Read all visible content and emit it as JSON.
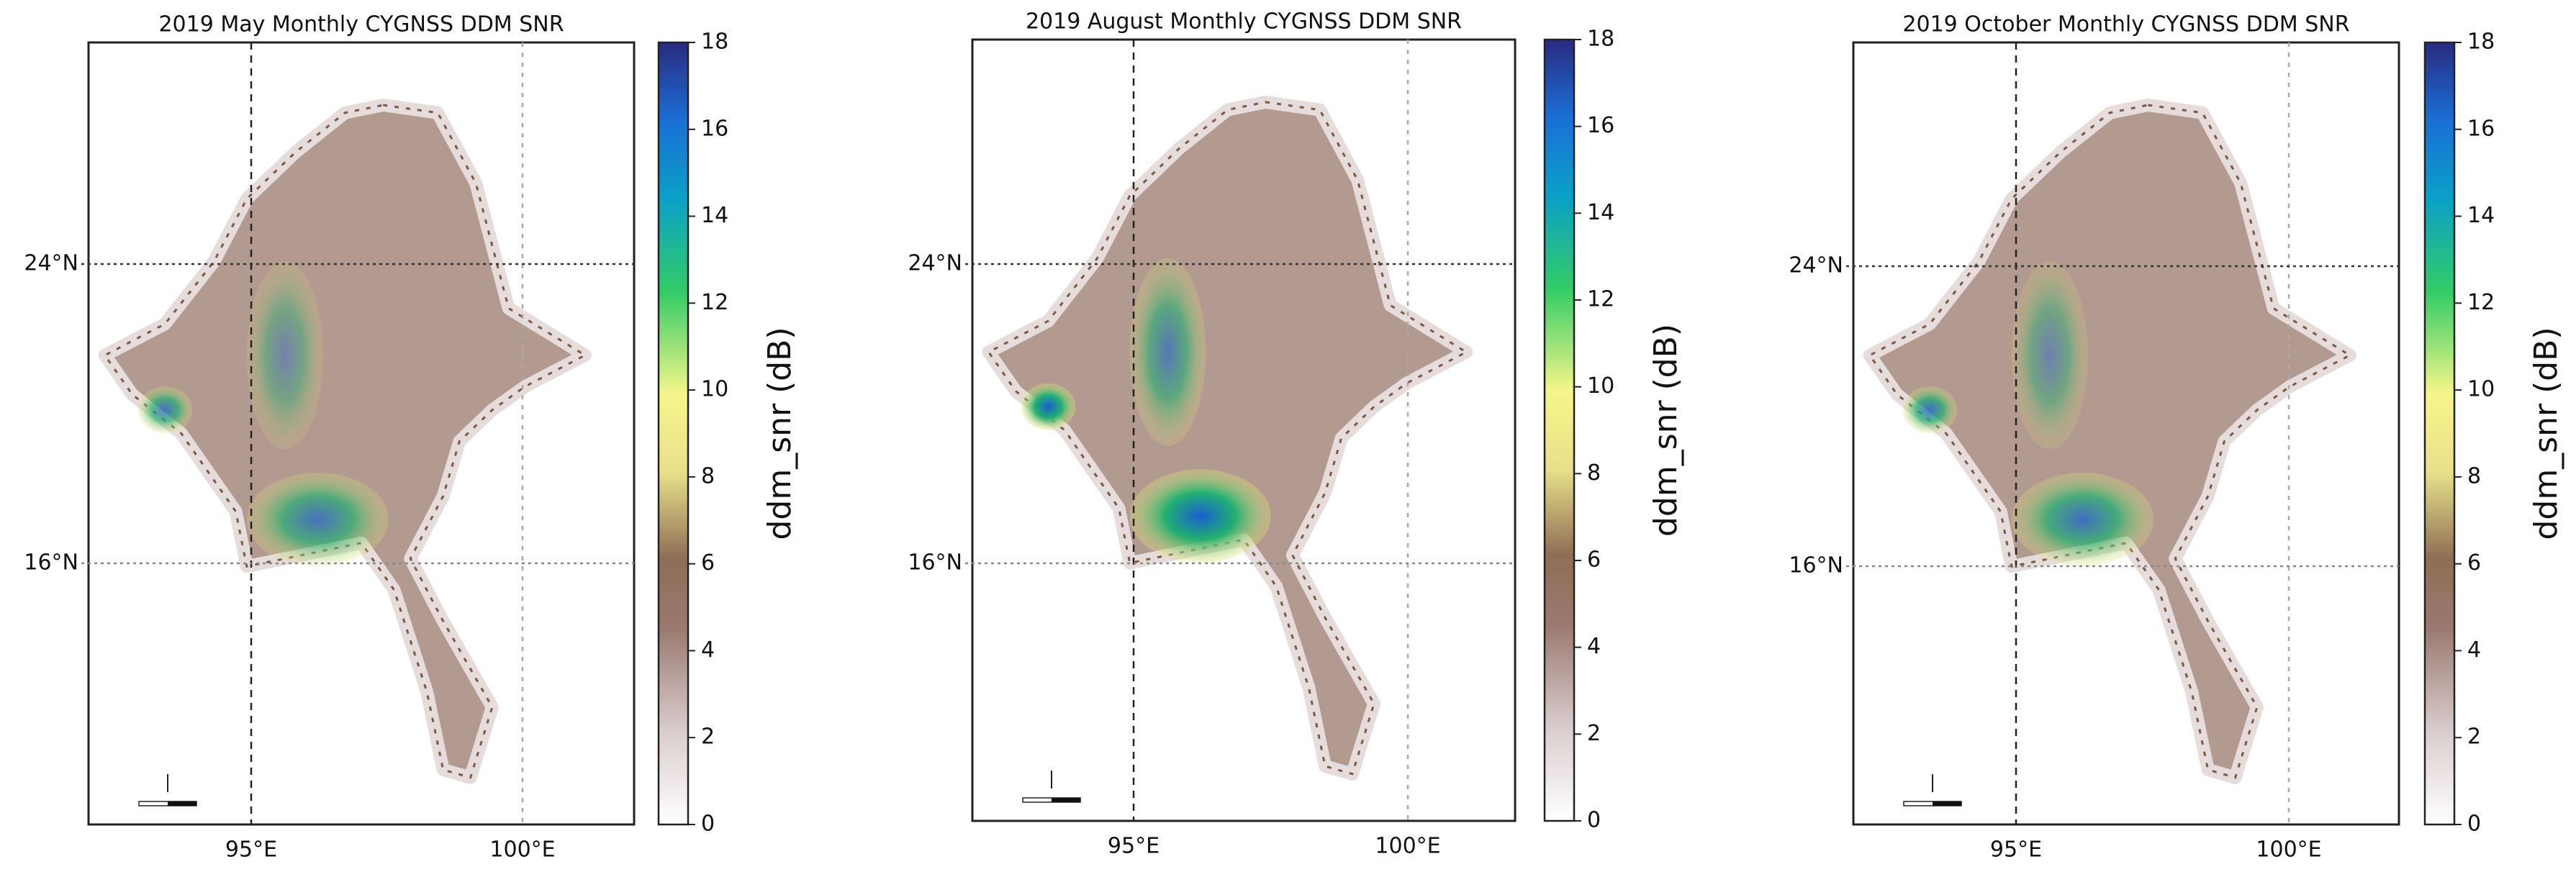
{
  "panels": [
    {
      "title": "2019 May Monthly CYGNSS DDM SNR",
      "lon_labels": [
        "95°E",
        "100°E"
      ],
      "lat_labels": [
        "24°N",
        "16°N"
      ],
      "colorbar": {
        "clim": [
          0,
          18
        ],
        "ticks": [
          0,
          2,
          4,
          6,
          8,
          10,
          12,
          14,
          16,
          18
        ],
        "label": "ddm_snr (dB)"
      }
    },
    {
      "title": "2019 August Monthly CYGNSS DDM SNR",
      "lon_labels": [
        "95°E",
        "100°E"
      ],
      "lat_labels": [
        "24°N",
        "16°N"
      ],
      "colorbar": {
        "clim": [
          0,
          18
        ],
        "ticks": [
          0,
          2,
          4,
          6,
          8,
          10,
          12,
          14,
          16,
          18
        ],
        "label": "ddm_snr (dB)"
      }
    },
    {
      "title": "2019 October Monthly CYGNSS DDM SNR",
      "lon_labels": [
        "95°E",
        "100°E"
      ],
      "lat_labels": [
        "24°N",
        "16°N"
      ],
      "colorbar": {
        "clim": [
          0,
          18
        ],
        "ticks": [
          0,
          2,
          4,
          6,
          8,
          10,
          12,
          14,
          16,
          18
        ],
        "label": "ddm_snr (dB)"
      }
    }
  ]
}
